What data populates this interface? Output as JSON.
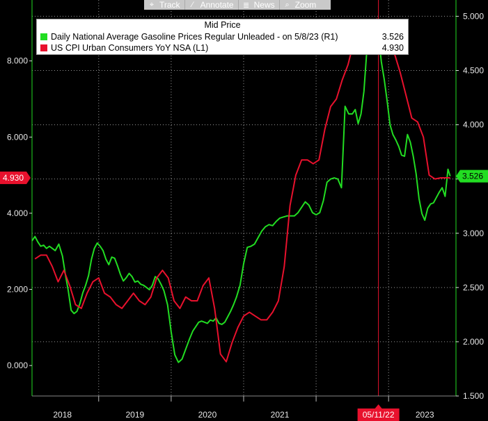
{
  "toolbar": {
    "buttons": [
      {
        "label": "Track",
        "icon": "crosshair-icon",
        "glyph": "⌖"
      },
      {
        "label": "Annotate",
        "icon": "pencil-icon",
        "glyph": "∕"
      },
      {
        "label": "News",
        "icon": "news-icon",
        "glyph": "≣"
      },
      {
        "label": "Zoom",
        "icon": "magnifier-icon",
        "glyph": "⌕"
      }
    ]
  },
  "legend": {
    "title": "Mid Price",
    "items": [
      {
        "label": "Daily National Average Gasoline Prices Regular Unleaded -  on 5/8/23  (R1)",
        "value": "3.526",
        "color": "#22dd22"
      },
      {
        "label": "US CPI Urban Consumers YoY NSA  (L1)",
        "value": "4.930",
        "color": "#e8112d"
      }
    ]
  },
  "chart_data": {
    "type": "line",
    "left_axis": {
      "ticks": [
        "0.000",
        "2.000",
        "4.000",
        "6.000",
        "8.000"
      ],
      "tick_values": [
        0,
        2,
        4,
        6,
        8
      ],
      "range": [
        -0.8,
        9.6
      ]
    },
    "right_axis": {
      "ticks": [
        "1.500",
        "2.000",
        "2.500",
        "3.000",
        "3.500",
        "4.000",
        "4.500",
        "5.000"
      ],
      "tick_values": [
        1.5,
        2.0,
        2.5,
        3.0,
        3.5,
        4.0,
        4.5,
        5.0
      ],
      "range": [
        1.5,
        5.15
      ]
    },
    "x_axis": {
      "ticks": [
        "2018",
        "2019",
        "2020",
        "2021",
        "2022",
        "2023"
      ],
      "tick_values": [
        2018.0,
        2019.0,
        2020.0,
        2021.0,
        2022.0,
        2023.0
      ],
      "range": [
        2017.58,
        2023.43
      ]
    },
    "grid": true,
    "legend_position": "top",
    "cursor": {
      "x": 2022.36,
      "label": "05/11/22"
    },
    "value_markers": {
      "left": "4.930",
      "right": "3.526"
    },
    "series": [
      {
        "name": "Daily National Average Gasoline Prices Regular Unleaded -  on 5/8/23  (R1)",
        "axis": "right",
        "color": "#22dd22",
        "x": [
          2017.58,
          2017.62,
          2017.66,
          2017.7,
          2017.74,
          2017.78,
          2017.82,
          2017.86,
          2017.9,
          2017.95,
          2018.0,
          2018.04,
          2018.08,
          2018.12,
          2018.16,
          2018.2,
          2018.24,
          2018.28,
          2018.32,
          2018.36,
          2018.4,
          2018.44,
          2018.48,
          2018.52,
          2018.56,
          2018.6,
          2018.64,
          2018.68,
          2018.72,
          2018.76,
          2018.8,
          2018.84,
          2018.88,
          2018.92,
          2018.96,
          2019.0,
          2019.04,
          2019.08,
          2019.12,
          2019.16,
          2019.2,
          2019.24,
          2019.28,
          2019.32,
          2019.36,
          2019.4,
          2019.45,
          2019.5,
          2019.55,
          2019.6,
          2019.65,
          2019.7,
          2019.75,
          2019.8,
          2019.84,
          2019.88,
          2019.92,
          2019.96,
          2020.0,
          2020.04,
          2020.08,
          2020.12,
          2020.16,
          2020.2,
          2020.24,
          2020.28,
          2020.32,
          2020.36,
          2020.4,
          2020.45,
          2020.5,
          2020.55,
          2020.6,
          2020.65,
          2020.7,
          2020.75,
          2020.8,
          2020.85,
          2020.9,
          2020.95,
          2021.0,
          2021.05,
          2021.1,
          2021.15,
          2021.2,
          2021.25,
          2021.3,
          2021.35,
          2021.4,
          2021.45,
          2021.5,
          2021.55,
          2021.6,
          2021.65,
          2021.7,
          2021.75,
          2021.8,
          2021.85,
          2021.9,
          2021.95,
          2022.0,
          2022.04,
          2022.08,
          2022.12,
          2022.16,
          2022.2,
          2022.24,
          2022.28,
          2022.32,
          2022.36,
          2022.4,
          2022.44,
          2022.48,
          2022.52,
          2022.56,
          2022.6,
          2022.64,
          2022.68,
          2022.72,
          2022.76,
          2022.8,
          2022.84,
          2022.88,
          2022.92,
          2022.96,
          2023.0,
          2023.04,
          2023.08,
          2023.12,
          2023.16,
          2023.2,
          2023.24,
          2023.28,
          2023.32,
          2023.35
        ],
        "y": [
          2.93,
          2.97,
          2.92,
          2.88,
          2.89,
          2.86,
          2.88,
          2.86,
          2.84,
          2.9,
          2.79,
          2.62,
          2.47,
          2.29,
          2.26,
          2.28,
          2.35,
          2.45,
          2.52,
          2.61,
          2.76,
          2.86,
          2.91,
          2.88,
          2.84,
          2.76,
          2.71,
          2.78,
          2.77,
          2.7,
          2.62,
          2.56,
          2.59,
          2.63,
          2.6,
          2.55,
          2.56,
          2.53,
          2.52,
          2.5,
          2.48,
          2.52,
          2.6,
          2.58,
          2.53,
          2.47,
          2.34,
          2.09,
          1.88,
          1.81,
          1.84,
          1.93,
          2.02,
          2.1,
          2.14,
          2.18,
          2.19,
          2.18,
          2.17,
          2.2,
          2.19,
          2.22,
          2.17,
          2.16,
          2.18,
          2.23,
          2.28,
          2.34,
          2.41,
          2.52,
          2.72,
          2.87,
          2.88,
          2.9,
          2.96,
          3.02,
          3.06,
          3.08,
          3.07,
          3.11,
          3.14,
          3.15,
          3.16,
          3.16,
          3.16,
          3.19,
          3.24,
          3.29,
          3.26,
          3.19,
          3.17,
          3.19,
          3.3,
          3.47,
          3.5,
          3.51,
          3.5,
          3.42,
          4.17,
          4.1,
          4.1,
          4.14,
          4.01,
          4.1,
          4.31,
          4.69,
          4.86,
          4.97,
          4.95,
          4.83,
          4.58,
          4.42,
          4.22,
          4.0,
          3.91,
          3.86,
          3.8,
          3.72,
          3.71,
          3.91,
          3.84,
          3.71,
          3.55,
          3.32,
          3.18,
          3.12,
          3.23,
          3.27,
          3.28,
          3.33,
          3.38,
          3.42,
          3.34,
          3.59,
          3.526
        ]
      },
      {
        "name": "US CPI Urban Consumers YoY NSA  (L1)",
        "axis": "left",
        "color": "#e8112d",
        "x": [
          2017.62,
          2017.7,
          2017.78,
          2017.86,
          2017.94,
          2018.02,
          2018.1,
          2018.18,
          2018.26,
          2018.34,
          2018.42,
          2018.5,
          2018.58,
          2018.66,
          2018.74,
          2018.82,
          2018.9,
          2018.98,
          2019.06,
          2019.14,
          2019.22,
          2019.3,
          2019.38,
          2019.46,
          2019.54,
          2019.62,
          2019.7,
          2019.78,
          2019.86,
          2019.94,
          2020.02,
          2020.1,
          2020.18,
          2020.26,
          2020.34,
          2020.42,
          2020.5,
          2020.58,
          2020.66,
          2020.74,
          2020.82,
          2020.9,
          2020.98,
          2021.06,
          2021.14,
          2021.22,
          2021.3,
          2021.38,
          2021.46,
          2021.54,
          2021.62,
          2021.7,
          2021.78,
          2021.86,
          2021.94,
          2022.02,
          2022.1,
          2022.18,
          2022.26,
          2022.34,
          2022.42,
          2022.5,
          2022.58,
          2022.66,
          2022.74,
          2022.82,
          2022.9,
          2022.98,
          2023.06,
          2023.14,
          2023.22,
          2023.3,
          2023.35
        ],
        "y": [
          2.8,
          2.9,
          2.9,
          2.6,
          2.2,
          2.5,
          2.1,
          1.6,
          1.5,
          1.9,
          2.2,
          2.3,
          1.9,
          1.8,
          1.6,
          1.5,
          1.7,
          1.9,
          1.7,
          1.6,
          1.8,
          2.3,
          2.5,
          2.3,
          1.7,
          1.5,
          1.8,
          1.7,
          1.7,
          2.1,
          2.3,
          1.5,
          0.3,
          0.1,
          0.6,
          1.0,
          1.3,
          1.4,
          1.3,
          1.2,
          1.2,
          1.4,
          1.7,
          2.6,
          4.2,
          5.0,
          5.4,
          5.4,
          5.3,
          5.4,
          6.2,
          6.8,
          7.0,
          7.5,
          7.9,
          8.5,
          8.3,
          8.6,
          8.6,
          9.1,
          8.5,
          8.3,
          8.2,
          7.7,
          7.1,
          6.5,
          6.4,
          6.0,
          5.0,
          4.9,
          4.93,
          4.93,
          4.93
        ]
      }
    ]
  }
}
